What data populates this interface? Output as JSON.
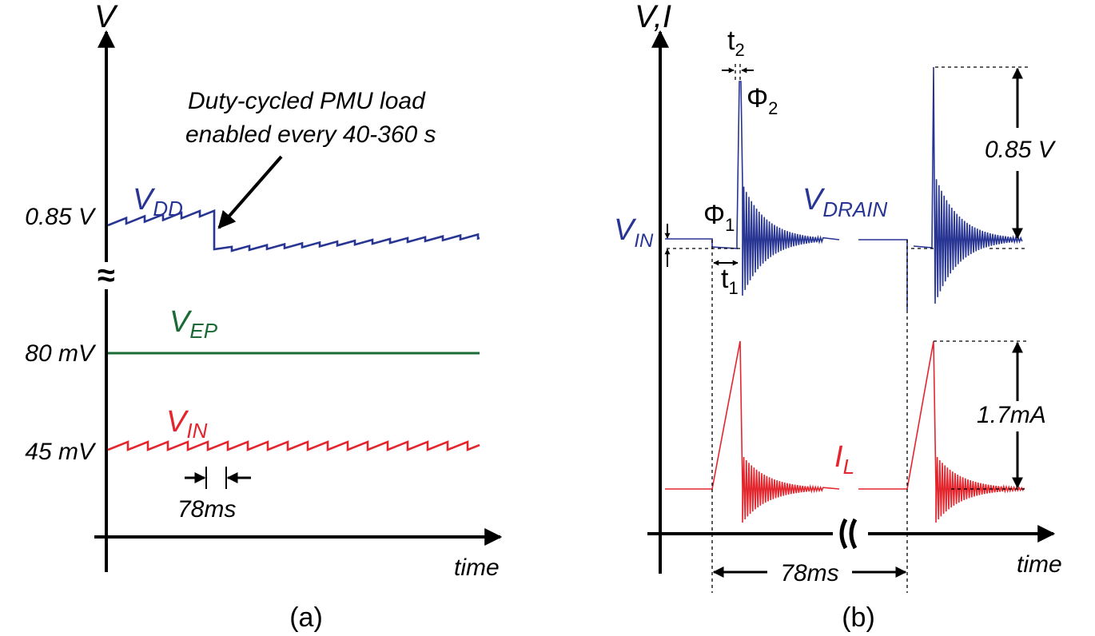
{
  "colors": {
    "axis": "#000000",
    "vdd": "#283593",
    "vep": "#1b6b36",
    "vin": "#e3262e",
    "ink": "#1a1a1a"
  },
  "panel_a": {
    "y_axis_label": "V",
    "x_axis_label": "time",
    "caption": "(a)",
    "annotation_line1": "Duty-cycled PMU load",
    "annotation_line2": "enabled every 40-360 s",
    "vdd": {
      "label_main": "V",
      "label_sub": "DD",
      "level": "0.85 V"
    },
    "vep": {
      "label_main": "V",
      "label_sub": "EP",
      "level": "80 mV"
    },
    "vin": {
      "label_main": "V",
      "label_sub": "IN",
      "level": "45 mV"
    },
    "period_label": "78ms",
    "break_glyph": "≈"
  },
  "panel_b": {
    "y_axis_label": "V,I",
    "x_axis_label": "time",
    "caption": "(b)",
    "vin": {
      "label_main": "V",
      "label_sub": "IN"
    },
    "vdrain": {
      "label_main": "V",
      "label_sub": "DRAIN"
    },
    "il": {
      "label_main": "I",
      "label_sub": "L"
    },
    "phi1": {
      "main": "Φ",
      "sub": "1"
    },
    "phi2": {
      "main": "Φ",
      "sub": "2"
    },
    "t1": {
      "main": "t",
      "sub": "1"
    },
    "t2": {
      "main": "t",
      "sub": "2"
    },
    "voltage_span": "0.85 V",
    "current_span": "1.7mA",
    "period_label": "78ms"
  }
}
